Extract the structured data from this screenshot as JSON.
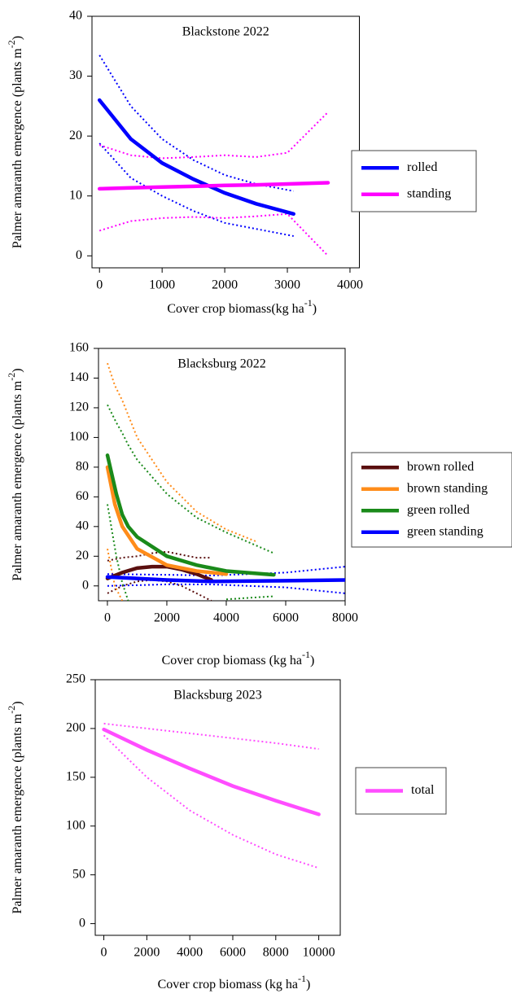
{
  "chart_data": [
    {
      "type": "line",
      "title": "Blackstone 2022",
      "xlabel": {
        "text": "Cover crop biomass(kg ha",
        "sup": "-1",
        "end": ")"
      },
      "ylabel": {
        "text": "Palmer amaranth emergence (plants m",
        "sup": "-2",
        "end": ")"
      },
      "xlim": [
        -120,
        4150
      ],
      "ylim": [
        -2,
        40
      ],
      "xticks": [
        0,
        1000,
        2000,
        3000,
        4000
      ],
      "yticks": [
        0,
        10,
        20,
        30,
        40
      ],
      "series": [
        {
          "name": "rolled",
          "color": "#0000ff",
          "x": [
            0,
            500,
            1000,
            1500,
            2000,
            2500,
            3100
          ],
          "values": [
            26,
            19.5,
            15.5,
            12.8,
            10.5,
            8.7,
            7
          ],
          "upper": [
            33.5,
            25,
            19.5,
            16,
            13.5,
            12,
            10.8
          ],
          "lower": [
            18.8,
            13,
            10,
            7.5,
            5.5,
            4.5,
            3.3
          ]
        },
        {
          "name": "standing",
          "color": "#ff00ff",
          "x": [
            0,
            500,
            1000,
            1500,
            2000,
            2500,
            3000,
            3650
          ],
          "values": [
            11.2,
            11.35,
            11.5,
            11.6,
            11.75,
            11.85,
            12,
            12.2
          ],
          "upper": [
            18.5,
            16.8,
            16.3,
            16.5,
            16.8,
            16.5,
            17.2,
            24
          ],
          "lower": [
            4.2,
            5.8,
            6.3,
            6.5,
            6.3,
            6.6,
            7,
            0
          ]
        }
      ]
    },
    {
      "type": "line",
      "title": "Blacksburg 2022",
      "xlabel": {
        "text": "Cover crop biomass (kg ha",
        "sup": "-1",
        "end": ")"
      },
      "ylabel": {
        "text": "Palmer amaranth emergence (plants m",
        "sup": "-2",
        "end": ")"
      },
      "xlim": [
        -300,
        8000
      ],
      "ylim": [
        -10,
        160
      ],
      "xticks": [
        0,
        2000,
        4000,
        6000,
        8000
      ],
      "yticks": [
        0,
        20,
        40,
        60,
        80,
        100,
        120,
        140,
        160
      ],
      "series": [
        {
          "name": "brown rolled",
          "color": "#5a0f0f",
          "x": [
            0,
            500,
            1000,
            1500,
            2000,
            2500,
            3000,
            3500
          ],
          "values": [
            5,
            9,
            12,
            13,
            13,
            11,
            8,
            4
          ],
          "upper": [
            17,
            19,
            20,
            22,
            23,
            21,
            19,
            19
          ],
          "lower": [
            -5,
            0,
            3,
            4,
            3,
            0,
            -5,
            -10
          ]
        },
        {
          "name": "brown standing",
          "color": "#ff8c1a",
          "x": [
            0,
            250,
            500,
            1000,
            2000,
            3000,
            4000,
            5000
          ],
          "values": [
            80,
            55,
            40,
            25,
            14,
            10,
            8,
            null
          ],
          "upper": [
            150,
            135,
            125,
            100,
            70,
            50,
            38,
            30
          ],
          "lower": [
            25,
            0,
            -10,
            null,
            null,
            null,
            null,
            null
          ]
        },
        {
          "name": "green rolled",
          "color": "#1a8a1a",
          "x": [
            0,
            300,
            500,
            700,
            1000,
            2000,
            3000,
            4000,
            5600
          ],
          "values": [
            88,
            62,
            48,
            40,
            33,
            20,
            14,
            10,
            7.5
          ],
          "upper": [
            122,
            110,
            103,
            95,
            85,
            62,
            46,
            36,
            22
          ],
          "lower": [
            55,
            20,
            2,
            -10,
            null,
            null,
            null,
            -9,
            -7
          ]
        },
        {
          "name": "green standing",
          "color": "#0000ff",
          "x": [
            0,
            2000,
            3500,
            6000,
            8000
          ],
          "values": [
            6,
            4,
            3,
            3.5,
            4
          ],
          "upper": [
            8,
            7.5,
            7,
            9,
            13
          ],
          "lower": [
            0,
            1,
            1,
            -1,
            -5
          ]
        }
      ]
    },
    {
      "type": "line",
      "title": "Blacksburg 2023",
      "xlabel": {
        "text": "Cover crop biomass (kg ha",
        "sup": "-1",
        "end": ")"
      },
      "ylabel": {
        "text": "Palmer amaranth emergence (plants m",
        "sup": "-2",
        "end": ")"
      },
      "xlim": [
        -400,
        11000
      ],
      "ylim": [
        -12,
        250
      ],
      "xticks": [
        0,
        2000,
        4000,
        6000,
        8000,
        10000
      ],
      "yticks": [
        0,
        50,
        100,
        150,
        200,
        250
      ],
      "series": [
        {
          "name": "total",
          "color": "#ff4dff",
          "x": [
            0,
            2000,
            4000,
            6000,
            8000,
            10000
          ],
          "values": [
            199,
            178,
            159,
            141,
            126,
            112
          ],
          "upper": [
            205,
            200,
            195,
            190,
            185,
            179
          ],
          "lower": [
            193,
            150,
            116,
            91,
            71,
            57
          ]
        }
      ]
    }
  ]
}
